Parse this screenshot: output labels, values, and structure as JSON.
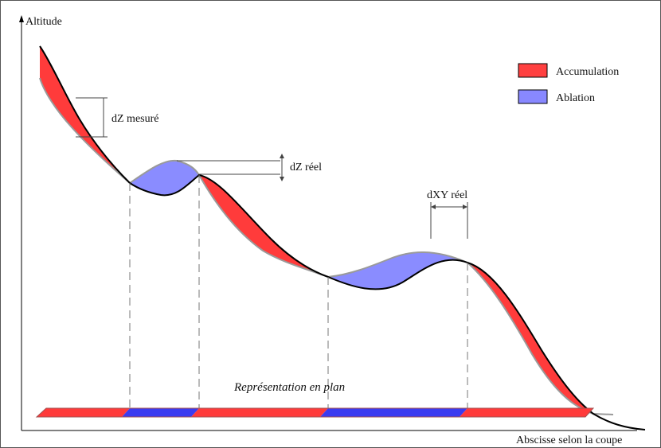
{
  "axes": {
    "y_label": "Altitude",
    "x_label": "Abscisse selon la coupe"
  },
  "legend": {
    "items": [
      {
        "label": "Accumulation",
        "color": "#ff4040"
      },
      {
        "label": "Ablation",
        "color": "#8888ff"
      }
    ]
  },
  "annotations": {
    "dz_measured": "dZ mesuré",
    "dz_real": "dZ réel",
    "dxy_real": "dXY réel",
    "plan_view": "Représentation en plan"
  },
  "plan_strip": {
    "segments": [
      {
        "zone": "Accumulation",
        "color": "#ff3a3a"
      },
      {
        "zone": "Ablation",
        "color": "#3b3bf0"
      },
      {
        "zone": "Accumulation",
        "color": "#ff3a3a"
      },
      {
        "zone": "Ablation",
        "color": "#3b3bf0"
      },
      {
        "zone": "Accumulation",
        "color": "#ff3a3a"
      }
    ]
  },
  "colors": {
    "accumulation": "#ff3b3b",
    "ablation": "#8a8cff",
    "old_surface": "#9a9a9a",
    "new_surface": "#000000"
  }
}
